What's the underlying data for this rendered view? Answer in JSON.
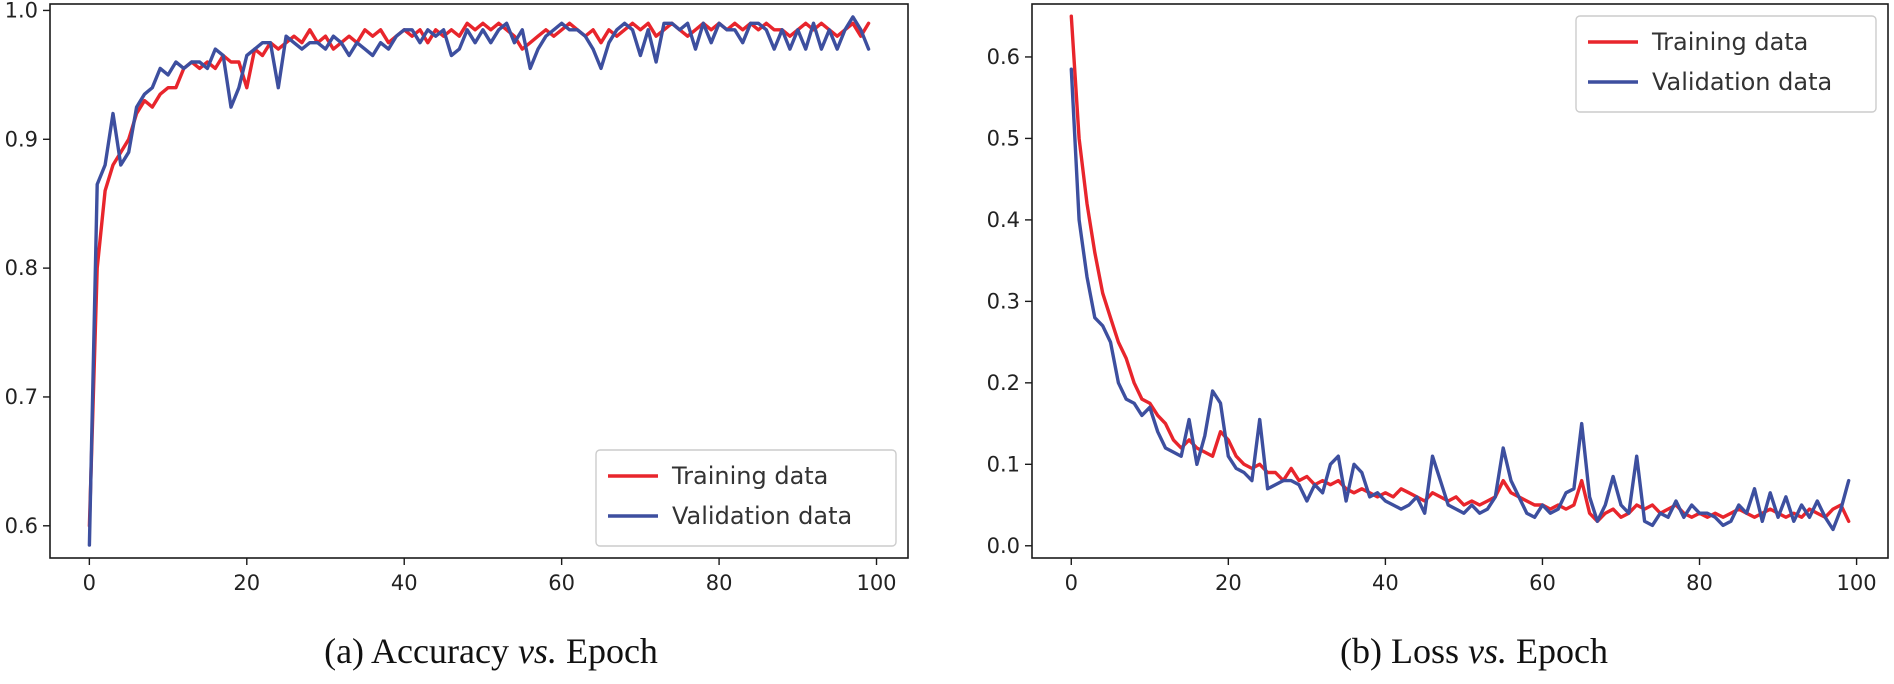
{
  "colors": {
    "training": "#e8252c",
    "validation": "#3d4f9f"
  },
  "chart_data": [
    {
      "type": "line",
      "title": "",
      "xlabel": "",
      "ylabel": "",
      "xlim": [
        -5,
        104
      ],
      "ylim": [
        0.575,
        1.005
      ],
      "xticks": [
        0,
        20,
        40,
        60,
        80,
        100
      ],
      "yticks": [
        0.6,
        0.7,
        0.8,
        0.9,
        1.0
      ],
      "ytick_labels": [
        "0.6",
        "0.7",
        "0.8",
        "0.9",
        "1.0"
      ],
      "legend": {
        "placement": "lower-right"
      },
      "grid": false,
      "caption": {
        "label": "(a) Accuracy ",
        "italic": "vs.",
        "rest": " Epoch"
      },
      "series": [
        {
          "name": "Training data",
          "x": [
            0,
            1,
            2,
            3,
            4,
            5,
            6,
            7,
            8,
            9,
            10,
            11,
            12,
            13,
            14,
            15,
            16,
            17,
            18,
            19,
            20,
            21,
            22,
            23,
            24,
            25,
            26,
            27,
            28,
            29,
            30,
            31,
            32,
            33,
            34,
            35,
            36,
            37,
            38,
            39,
            40,
            41,
            42,
            43,
            44,
            45,
            46,
            47,
            48,
            49,
            50,
            51,
            52,
            53,
            54,
            55,
            56,
            57,
            58,
            59,
            60,
            61,
            62,
            63,
            64,
            65,
            66,
            67,
            68,
            69,
            70,
            71,
            72,
            73,
            74,
            75,
            76,
            77,
            78,
            79,
            80,
            81,
            82,
            83,
            84,
            85,
            86,
            87,
            88,
            89,
            90,
            91,
            92,
            93,
            94,
            95,
            96,
            97,
            98,
            99
          ],
          "y": [
            0.6,
            0.8,
            0.86,
            0.88,
            0.89,
            0.9,
            0.92,
            0.93,
            0.925,
            0.935,
            0.94,
            0.94,
            0.955,
            0.96,
            0.955,
            0.96,
            0.955,
            0.965,
            0.96,
            0.96,
            0.94,
            0.97,
            0.965,
            0.975,
            0.97,
            0.975,
            0.98,
            0.975,
            0.985,
            0.975,
            0.98,
            0.97,
            0.975,
            0.98,
            0.975,
            0.985,
            0.98,
            0.985,
            0.975,
            0.98,
            0.985,
            0.98,
            0.985,
            0.975,
            0.985,
            0.98,
            0.985,
            0.98,
            0.99,
            0.985,
            0.99,
            0.985,
            0.99,
            0.985,
            0.98,
            0.97,
            0.975,
            0.98,
            0.985,
            0.98,
            0.985,
            0.99,
            0.985,
            0.98,
            0.985,
            0.975,
            0.985,
            0.98,
            0.985,
            0.99,
            0.985,
            0.99,
            0.98,
            0.985,
            0.99,
            0.985,
            0.98,
            0.985,
            0.99,
            0.985,
            0.99,
            0.985,
            0.99,
            0.985,
            0.99,
            0.985,
            0.99,
            0.985,
            0.985,
            0.98,
            0.985,
            0.99,
            0.985,
            0.99,
            0.985,
            0.98,
            0.985,
            0.99,
            0.98,
            0.99
          ]
        },
        {
          "name": "Validation data",
          "x": [
            0,
            1,
            2,
            3,
            4,
            5,
            6,
            7,
            8,
            9,
            10,
            11,
            12,
            13,
            14,
            15,
            16,
            17,
            18,
            19,
            20,
            21,
            22,
            23,
            24,
            25,
            26,
            27,
            28,
            29,
            30,
            31,
            32,
            33,
            34,
            35,
            36,
            37,
            38,
            39,
            40,
            41,
            42,
            43,
            44,
            45,
            46,
            47,
            48,
            49,
            50,
            51,
            52,
            53,
            54,
            55,
            56,
            57,
            58,
            59,
            60,
            61,
            62,
            63,
            64,
            65,
            66,
            67,
            68,
            69,
            70,
            71,
            72,
            73,
            74,
            75,
            76,
            77,
            78,
            79,
            80,
            81,
            82,
            83,
            84,
            85,
            86,
            87,
            88,
            89,
            90,
            91,
            92,
            93,
            94,
            95,
            96,
            97,
            98,
            99
          ],
          "y": [
            0.585,
            0.865,
            0.88,
            0.92,
            0.88,
            0.89,
            0.925,
            0.935,
            0.94,
            0.955,
            0.95,
            0.96,
            0.955,
            0.96,
            0.96,
            0.955,
            0.97,
            0.965,
            0.925,
            0.94,
            0.965,
            0.97,
            0.975,
            0.975,
            0.94,
            0.98,
            0.975,
            0.97,
            0.975,
            0.975,
            0.97,
            0.98,
            0.975,
            0.965,
            0.975,
            0.97,
            0.965,
            0.975,
            0.97,
            0.98,
            0.985,
            0.985,
            0.975,
            0.985,
            0.98,
            0.985,
            0.965,
            0.97,
            0.985,
            0.975,
            0.985,
            0.975,
            0.985,
            0.99,
            0.975,
            0.985,
            0.955,
            0.97,
            0.98,
            0.985,
            0.99,
            0.985,
            0.985,
            0.98,
            0.97,
            0.955,
            0.975,
            0.985,
            0.99,
            0.985,
            0.965,
            0.985,
            0.96,
            0.99,
            0.99,
            0.985,
            0.99,
            0.97,
            0.99,
            0.975,
            0.99,
            0.985,
            0.985,
            0.975,
            0.99,
            0.99,
            0.985,
            0.97,
            0.985,
            0.97,
            0.985,
            0.97,
            0.99,
            0.97,
            0.985,
            0.97,
            0.985,
            0.995,
            0.985,
            0.97
          ]
        }
      ]
    },
    {
      "type": "line",
      "title": "",
      "xlabel": "",
      "ylabel": "",
      "xlim": [
        -5,
        104
      ],
      "ylim": [
        -0.015,
        0.665
      ],
      "xticks": [
        0,
        20,
        40,
        60,
        80,
        100
      ],
      "yticks": [
        0.0,
        0.1,
        0.2,
        0.3,
        0.4,
        0.5,
        0.6
      ],
      "ytick_labels": [
        "0.0",
        "0.1",
        "0.2",
        "0.3",
        "0.4",
        "0.5",
        "0.6"
      ],
      "legend": {
        "placement": "top-right"
      },
      "grid": false,
      "caption": {
        "label": "(b) Loss ",
        "italic": "vs.",
        "rest": " Epoch"
      },
      "series": [
        {
          "name": "Training data",
          "x": [
            0,
            1,
            2,
            3,
            4,
            5,
            6,
            7,
            8,
            9,
            10,
            11,
            12,
            13,
            14,
            15,
            16,
            17,
            18,
            19,
            20,
            21,
            22,
            23,
            24,
            25,
            26,
            27,
            28,
            29,
            30,
            31,
            32,
            33,
            34,
            35,
            36,
            37,
            38,
            39,
            40,
            41,
            42,
            43,
            44,
            45,
            46,
            47,
            48,
            49,
            50,
            51,
            52,
            53,
            54,
            55,
            56,
            57,
            58,
            59,
            60,
            61,
            62,
            63,
            64,
            65,
            66,
            67,
            68,
            69,
            70,
            71,
            72,
            73,
            74,
            75,
            76,
            77,
            78,
            79,
            80,
            81,
            82,
            83,
            84,
            85,
            86,
            87,
            88,
            89,
            90,
            91,
            92,
            93,
            94,
            95,
            96,
            97,
            98,
            99
          ],
          "y": [
            0.65,
            0.5,
            0.42,
            0.36,
            0.31,
            0.28,
            0.25,
            0.23,
            0.2,
            0.18,
            0.175,
            0.16,
            0.15,
            0.13,
            0.12,
            0.13,
            0.12,
            0.115,
            0.11,
            0.14,
            0.13,
            0.11,
            0.1,
            0.095,
            0.1,
            0.09,
            0.09,
            0.08,
            0.095,
            0.08,
            0.085,
            0.075,
            0.08,
            0.075,
            0.08,
            0.07,
            0.065,
            0.07,
            0.065,
            0.06,
            0.065,
            0.06,
            0.07,
            0.065,
            0.06,
            0.055,
            0.065,
            0.06,
            0.055,
            0.06,
            0.05,
            0.055,
            0.05,
            0.055,
            0.06,
            0.08,
            0.065,
            0.06,
            0.055,
            0.05,
            0.05,
            0.045,
            0.05,
            0.045,
            0.05,
            0.08,
            0.04,
            0.03,
            0.04,
            0.045,
            0.035,
            0.04,
            0.05,
            0.045,
            0.05,
            0.04,
            0.045,
            0.05,
            0.04,
            0.035,
            0.04,
            0.035,
            0.04,
            0.035,
            0.04,
            0.045,
            0.04,
            0.035,
            0.04,
            0.045,
            0.04,
            0.035,
            0.04,
            0.035,
            0.045,
            0.04,
            0.035,
            0.045,
            0.05,
            0.03
          ]
        },
        {
          "name": "Validation data",
          "x": [
            0,
            1,
            2,
            3,
            4,
            5,
            6,
            7,
            8,
            9,
            10,
            11,
            12,
            13,
            14,
            15,
            16,
            17,
            18,
            19,
            20,
            21,
            22,
            23,
            24,
            25,
            26,
            27,
            28,
            29,
            30,
            31,
            32,
            33,
            34,
            35,
            36,
            37,
            38,
            39,
            40,
            41,
            42,
            43,
            44,
            45,
            46,
            47,
            48,
            49,
            50,
            51,
            52,
            53,
            54,
            55,
            56,
            57,
            58,
            59,
            60,
            61,
            62,
            63,
            64,
            65,
            66,
            67,
            68,
            69,
            70,
            71,
            72,
            73,
            74,
            75,
            76,
            77,
            78,
            79,
            80,
            81,
            82,
            83,
            84,
            85,
            86,
            87,
            88,
            89,
            90,
            91,
            92,
            93,
            94,
            95,
            96,
            97,
            98,
            99
          ],
          "y": [
            0.585,
            0.4,
            0.33,
            0.28,
            0.27,
            0.25,
            0.2,
            0.18,
            0.175,
            0.16,
            0.17,
            0.14,
            0.12,
            0.115,
            0.11,
            0.155,
            0.1,
            0.135,
            0.19,
            0.175,
            0.11,
            0.095,
            0.09,
            0.08,
            0.155,
            0.07,
            0.075,
            0.08,
            0.08,
            0.075,
            0.055,
            0.075,
            0.065,
            0.1,
            0.11,
            0.055,
            0.1,
            0.09,
            0.06,
            0.065,
            0.055,
            0.05,
            0.045,
            0.05,
            0.06,
            0.04,
            0.11,
            0.08,
            0.05,
            0.045,
            0.04,
            0.05,
            0.04,
            0.045,
            0.06,
            0.12,
            0.08,
            0.06,
            0.04,
            0.035,
            0.05,
            0.04,
            0.045,
            0.065,
            0.07,
            0.15,
            0.06,
            0.03,
            0.05,
            0.085,
            0.05,
            0.04,
            0.11,
            0.03,
            0.025,
            0.04,
            0.035,
            0.055,
            0.035,
            0.05,
            0.04,
            0.04,
            0.035,
            0.025,
            0.03,
            0.05,
            0.04,
            0.07,
            0.03,
            0.065,
            0.035,
            0.06,
            0.03,
            0.05,
            0.035,
            0.055,
            0.035,
            0.02,
            0.045,
            0.08
          ]
        }
      ]
    }
  ]
}
